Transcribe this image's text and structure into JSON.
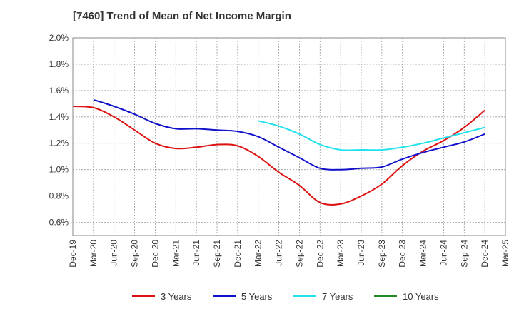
{
  "chart_data": {
    "type": "line",
    "title": "[7460]  Trend of Mean of Net Income Margin",
    "xlabel": "",
    "ylabel": "",
    "x_ticks": [
      "Dec-19",
      "Mar-20",
      "Jun-20",
      "Sep-20",
      "Dec-20",
      "Mar-21",
      "Jun-21",
      "Sep-21",
      "Dec-21",
      "Mar-22",
      "Jun-22",
      "Sep-22",
      "Dec-22",
      "Mar-23",
      "Jun-23",
      "Sep-23",
      "Dec-23",
      "Mar-24",
      "Jun-24",
      "Sep-24",
      "Dec-24",
      "Mar-25"
    ],
    "y_ticks": [
      "0.6%",
      "0.8%",
      "1.0%",
      "1.2%",
      "1.4%",
      "1.6%",
      "1.8%",
      "2.0%"
    ],
    "ylim": [
      0.5,
      2.0
    ],
    "grid": true,
    "legend_position": "bottom",
    "series": [
      {
        "name": "3 Years",
        "color": "#dd1111",
        "values": [
          1.48,
          1.47,
          1.4,
          1.3,
          1.2,
          1.16,
          1.17,
          1.19,
          1.18,
          1.1,
          0.98,
          0.88,
          0.75,
          0.74,
          0.8,
          0.89,
          1.03,
          1.14,
          1.22,
          1.32,
          1.45,
          null
        ]
      },
      {
        "name": "5 Years",
        "color": "#1111cc",
        "values": [
          null,
          1.53,
          1.48,
          1.42,
          1.35,
          1.31,
          1.31,
          1.3,
          1.29,
          1.25,
          1.17,
          1.09,
          1.01,
          1.0,
          1.01,
          1.02,
          1.08,
          1.13,
          1.17,
          1.21,
          1.27,
          null
        ]
      },
      {
        "name": "7 Years",
        "color": "#22e2ee",
        "values": [
          null,
          null,
          null,
          null,
          null,
          null,
          null,
          null,
          null,
          1.37,
          1.33,
          1.27,
          1.19,
          1.15,
          1.15,
          1.15,
          1.17,
          1.2,
          1.24,
          1.28,
          1.32,
          null
        ]
      },
      {
        "name": "10 Years",
        "color": "#228822",
        "values": [
          null,
          null,
          null,
          null,
          null,
          null,
          null,
          null,
          null,
          null,
          null,
          null,
          null,
          null,
          null,
          null,
          null,
          null,
          null,
          null,
          null,
          null
        ]
      }
    ]
  }
}
